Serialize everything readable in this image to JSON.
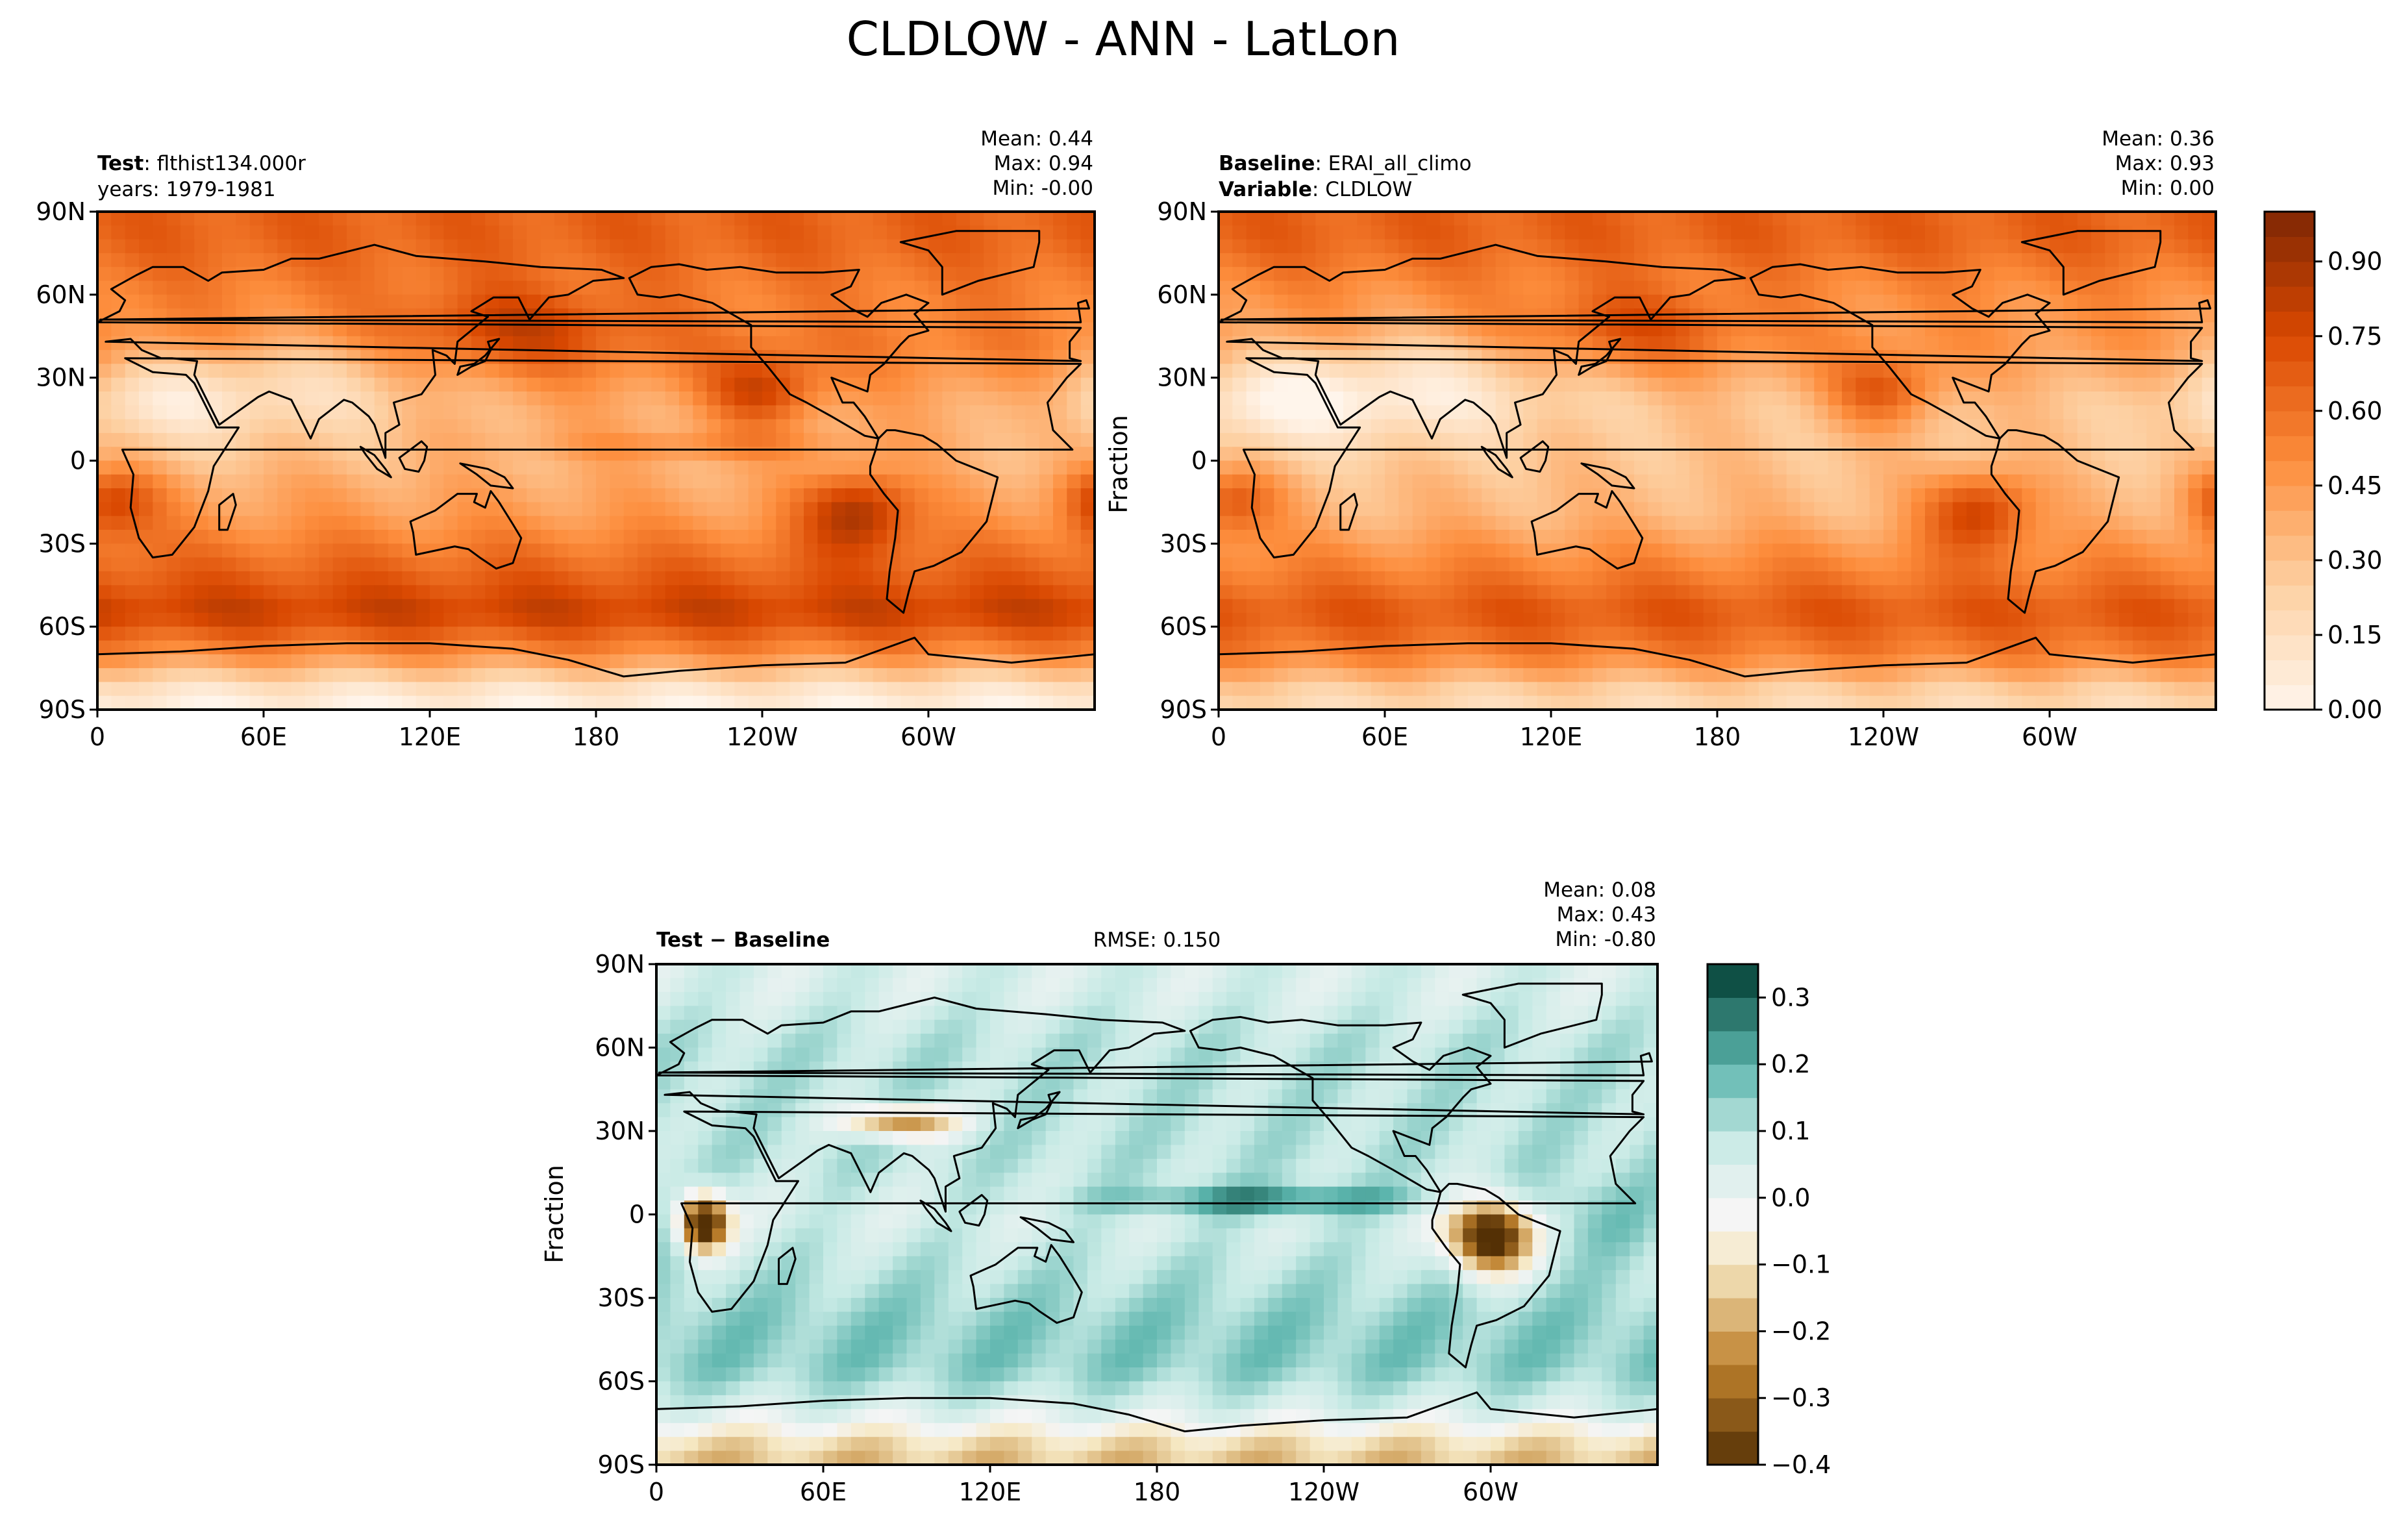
{
  "figure": {
    "title": "CLDLOW - ANN - LatLon"
  },
  "panels": [
    {
      "id": "test",
      "header": {
        "line1_bold": "Test",
        "line1_rest": ": flthist134.000r",
        "line2": "years: 1979-1981",
        "right": ""
      },
      "stats": {
        "mean": "Mean:  0.44",
        "max": "Max:  0.94",
        "min": "Min: -0.00"
      },
      "ylabel": "",
      "colormap": "Oranges"
    },
    {
      "id": "baseline",
      "header": {
        "line1_bold": "Baseline",
        "line1_rest": ": ERAI_all_climo",
        "line2_bold": "Variable",
        "line2_rest": ": CLDLOW",
        "right": ""
      },
      "stats": {
        "mean": "Mean:  0.36",
        "max": "Max:  0.93",
        "min": "Min:  0.00"
      },
      "ylabel": "Fraction",
      "colormap": "Oranges"
    },
    {
      "id": "diff",
      "header": {
        "line1_bold": "Test − Baseline",
        "right": "RMSE: 0.150"
      },
      "stats": {
        "mean": "Mean:  0.08",
        "max": "Max:  0.43",
        "min": "Min: -0.80"
      },
      "ylabel": "Fraction",
      "colormap": "BrBG"
    }
  ],
  "axes": {
    "x_ticks": [
      "0",
      "60E",
      "120E",
      "180",
      "120W",
      "60W"
    ],
    "y_ticks": [
      "90N",
      "60N",
      "30N",
      "0",
      "30S",
      "60S",
      "90S"
    ]
  },
  "colorbars": {
    "top": {
      "ticks": [
        "0.90",
        "0.75",
        "0.60",
        "0.45",
        "0.30",
        "0.15",
        "0.00"
      ],
      "range": [
        0,
        1.0
      ]
    },
    "diff": {
      "ticks": [
        "0.3",
        "0.2",
        "0.1",
        "0.0",
        "−0.1",
        "−0.2",
        "−0.3",
        "−0.4"
      ],
      "range": [
        -0.4,
        0.35
      ]
    }
  },
  "chart_data": [
    {
      "type": "heatmap",
      "title": "Test: flthist134.000r",
      "variable": "CLDLOW",
      "ylabel": "",
      "xlim": [
        0,
        360
      ],
      "ylim": [
        -90,
        90
      ],
      "stats": {
        "mean": 0.44,
        "max": 0.94,
        "min": -0.0
      },
      "zonal_mean_approx": [
        {
          "lat": 80,
          "value": 0.65
        },
        {
          "lat": 60,
          "value": 0.55
        },
        {
          "lat": 40,
          "value": 0.55
        },
        {
          "lat": 20,
          "value": 0.4
        },
        {
          "lat": 0,
          "value": 0.35
        },
        {
          "lat": -20,
          "value": 0.45
        },
        {
          "lat": -40,
          "value": 0.65
        },
        {
          "lat": -55,
          "value": 0.8
        },
        {
          "lat": -70,
          "value": 0.5
        },
        {
          "lat": -85,
          "value": 0.05
        }
      ]
    },
    {
      "type": "heatmap",
      "title": "Baseline: ERAI_all_climo",
      "variable": "CLDLOW",
      "ylabel": "Fraction",
      "xlim": [
        0,
        360
      ],
      "ylim": [
        -90,
        90
      ],
      "stats": {
        "mean": 0.36,
        "max": 0.93,
        "min": 0.0
      },
      "zonal_mean_approx": [
        {
          "lat": 80,
          "value": 0.65
        },
        {
          "lat": 60,
          "value": 0.5
        },
        {
          "lat": 40,
          "value": 0.45
        },
        {
          "lat": 20,
          "value": 0.3
        },
        {
          "lat": 0,
          "value": 0.3
        },
        {
          "lat": -20,
          "value": 0.35
        },
        {
          "lat": -40,
          "value": 0.55
        },
        {
          "lat": -55,
          "value": 0.7
        },
        {
          "lat": -70,
          "value": 0.55
        },
        {
          "lat": -85,
          "value": 0.2
        }
      ]
    },
    {
      "type": "heatmap",
      "title": "Test − Baseline",
      "variable": "CLDLOW",
      "ylabel": "Fraction",
      "xlim": [
        0,
        360
      ],
      "ylim": [
        -90,
        90
      ],
      "stats": {
        "mean": 0.08,
        "max": 0.43,
        "min": -0.8,
        "rmse": 0.15
      },
      "zonal_mean_approx": [
        {
          "lat": 80,
          "value": 0.05
        },
        {
          "lat": 60,
          "value": 0.1
        },
        {
          "lat": 40,
          "value": 0.1
        },
        {
          "lat": 20,
          "value": 0.1
        },
        {
          "lat": 0,
          "value": 0.05
        },
        {
          "lat": -20,
          "value": 0.1
        },
        {
          "lat": -40,
          "value": 0.15
        },
        {
          "lat": -55,
          "value": 0.15
        },
        {
          "lat": -70,
          "value": 0.05
        },
        {
          "lat": -85,
          "value": -0.15
        }
      ]
    }
  ]
}
